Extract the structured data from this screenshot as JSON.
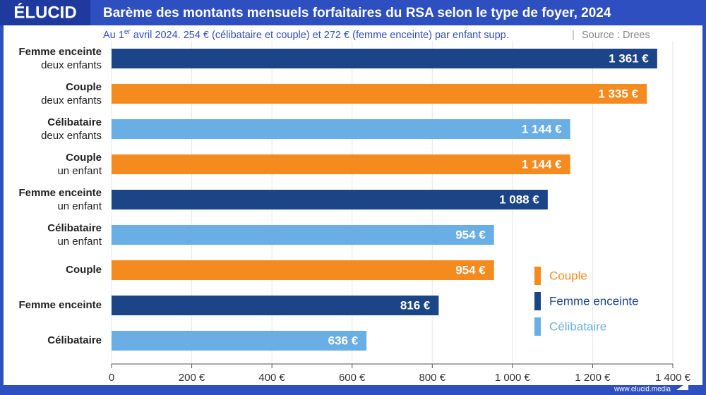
{
  "brand": "ÉLUCID",
  "footer": "www.elucid.media",
  "chart_data": {
    "type": "bar",
    "orientation": "horizontal",
    "title": "Barème des montants mensuels forfaitaires du RSA selon le type de foyer, 2024",
    "subtitle": [
      "Au 1",
      "er",
      " avril 2024. 254 € (célibataire et couple) et 272 € (femme enceinte) par enfant supp."
    ],
    "source": "Source : Drees",
    "categories": [
      [
        "Femme enceinte",
        "deux enfants"
      ],
      [
        "Couple",
        "deux enfants"
      ],
      [
        "Célibataire",
        "deux enfants"
      ],
      [
        "Couple",
        "un enfant"
      ],
      [
        "Femme enceinte",
        "un enfant"
      ],
      [
        "Célibataire",
        "un enfant"
      ],
      [
        "Couple"
      ],
      [
        "Femme enceinte"
      ],
      [
        "Célibataire"
      ]
    ],
    "series": [
      {
        "name": "Couple",
        "color": "#f58a1f",
        "values": [
          null,
          1335,
          null,
          1144,
          null,
          null,
          954,
          null,
          null
        ],
        "value_labels": [
          null,
          "1 335 €",
          null,
          "1 144 €",
          null,
          null,
          "954 €",
          null,
          null
        ]
      },
      {
        "name": "Femme enceinte",
        "color": "#1c4587",
        "values": [
          1361,
          null,
          null,
          null,
          1088,
          null,
          null,
          816,
          null
        ],
        "value_labels": [
          "1 361 €",
          null,
          null,
          null,
          "1 088 €",
          null,
          null,
          "816 €",
          null
        ]
      },
      {
        "name": "Célibataire",
        "color": "#6aaee6",
        "values": [
          null,
          null,
          1144,
          null,
          null,
          954,
          null,
          null,
          636
        ],
        "value_labels": [
          null,
          null,
          "1 144 €",
          null,
          null,
          "954 €",
          null,
          null,
          "636 €"
        ]
      }
    ],
    "xlim": [
      0,
      1400
    ],
    "xticks": [
      0,
      {
        "value": 200,
        "label": "200 €"
      },
      {
        "value": 400,
        "label": "400 €"
      },
      {
        "value": 600,
        "label": "600 €"
      },
      {
        "value": 800,
        "label": "800 €"
      },
      {
        "value": 1000,
        "label": "1 000 €"
      },
      {
        "value": 1200,
        "label": "1 200 €"
      },
      {
        "value": 1400,
        "label": "1 400 €"
      }
    ],
    "grid": true
  }
}
